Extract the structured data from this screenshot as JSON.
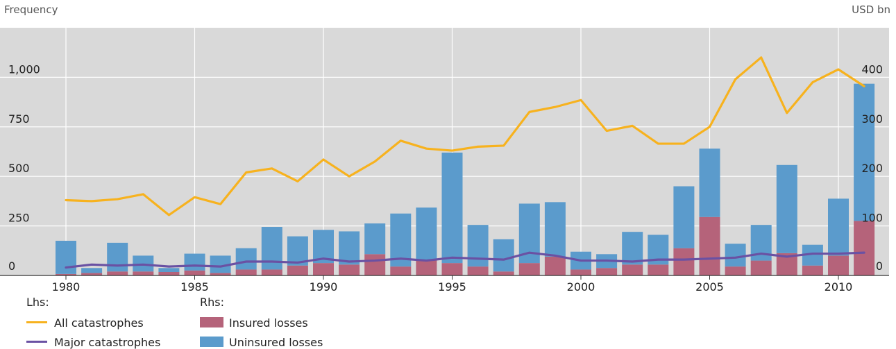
{
  "header": {
    "left_label": "Frequency",
    "right_label": "USD bn"
  },
  "colors": {
    "background": "#d9d9d9",
    "grid": "#ffffff",
    "all_catastrophes": "#f7b21e",
    "major_catastrophes": "#6a51a3",
    "insured": "#b5637a",
    "uninsured": "#5b9bcc"
  },
  "chart_data": {
    "type": "bar",
    "x": [
      1980,
      1981,
      1982,
      1983,
      1984,
      1985,
      1986,
      1987,
      1988,
      1989,
      1990,
      1991,
      1992,
      1993,
      1994,
      1995,
      1996,
      1997,
      1998,
      1999,
      2000,
      2001,
      2002,
      2003,
      2004,
      2005,
      2006,
      2007,
      2008,
      2009,
      2010,
      2011
    ],
    "x_ticks": [
      "1980",
      "1985",
      "1990",
      "1995",
      "2000",
      "2005",
      "2010"
    ],
    "y_left_ticks": [
      "0",
      "250",
      "500",
      "750",
      "1,000"
    ],
    "y_right_ticks": [
      "0",
      "100",
      "200",
      "300",
      "400"
    ],
    "ylim_left": [
      0,
      1250
    ],
    "ylim_right": [
      0,
      500
    ],
    "series": [
      {
        "name": "Insured losses",
        "axis": "right",
        "kind": "bar",
        "values": [
          3,
          5,
          8,
          8,
          7,
          10,
          5,
          12,
          12,
          20,
          25,
          22,
          43,
          18,
          32,
          25,
          18,
          8,
          25,
          38,
          12,
          15,
          22,
          22,
          55,
          118,
          18,
          30,
          45,
          20,
          40,
          110
        ]
      },
      {
        "name": "Uninsured losses",
        "axis": "right",
        "kind": "bar",
        "values": [
          67,
          10,
          58,
          32,
          8,
          34,
          35,
          43,
          86,
          59,
          67,
          67,
          62,
          107,
          105,
          223,
          84,
          65,
          120,
          110,
          36,
          28,
          66,
          60,
          125,
          138,
          46,
          72,
          178,
          42,
          115,
          277
        ]
      },
      {
        "name": "All catastrophes",
        "axis": "left",
        "kind": "line",
        "values": [
          380,
          375,
          385,
          410,
          305,
          395,
          360,
          520,
          540,
          475,
          585,
          500,
          575,
          680,
          640,
          630,
          650,
          655,
          825,
          850,
          885,
          730,
          755,
          665,
          665,
          750,
          990,
          1100,
          820,
          975,
          1040,
          955
        ]
      },
      {
        "name": "Major catastrophes",
        "axis": "left",
        "kind": "line",
        "values": [
          40,
          55,
          50,
          55,
          45,
          50,
          45,
          70,
          70,
          65,
          85,
          70,
          75,
          85,
          75,
          90,
          85,
          80,
          115,
          100,
          75,
          75,
          70,
          80,
          80,
          85,
          90,
          110,
          95,
          110,
          110,
          115
        ]
      }
    ],
    "legend": {
      "lhs_label": "Lhs:",
      "rhs_label": "Rhs:",
      "lhs_items": [
        "All catastrophes",
        "Major catastrophes"
      ],
      "rhs_items": [
        "Insured losses",
        "Uninsured losses"
      ],
      "placement": "bottom-left"
    },
    "grid": true
  }
}
